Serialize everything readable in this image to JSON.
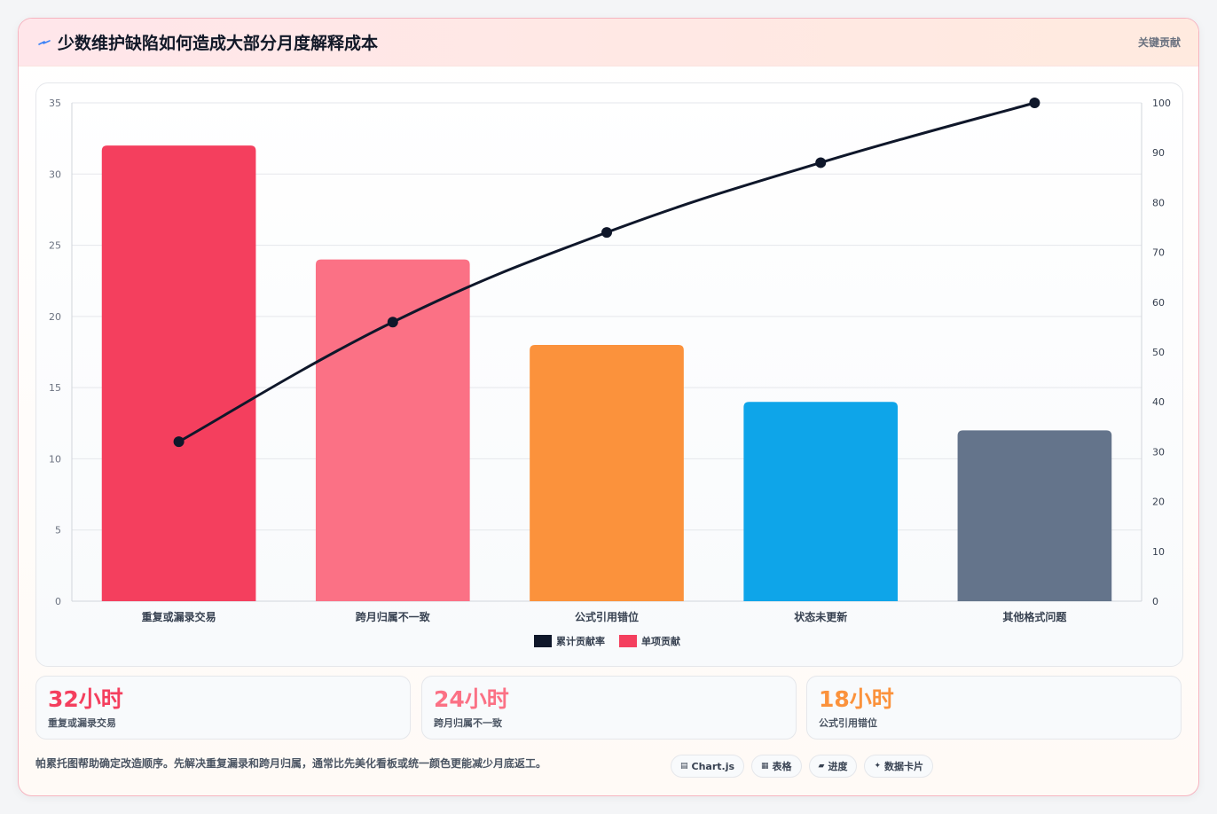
{
  "header": {
    "title": "少数维护缺陷如何造成大部分月度解释成本",
    "tag": "关键贡献"
  },
  "chart_data": {
    "type": "bar",
    "categories": [
      "重复或漏录交易",
      "跨月归属不一致",
      "公式引用错位",
      "状态未更新",
      "其他格式问题"
    ],
    "series": [
      {
        "name": "单项贡献",
        "type": "bar",
        "values": [
          32,
          24,
          18,
          14,
          12
        ],
        "colors": [
          "#f43f5e",
          "#fb7185",
          "#fb923c",
          "#0ea5e9",
          "#64748b"
        ],
        "axis": "left"
      },
      {
        "name": "累计贡献率",
        "type": "line",
        "values": [
          32,
          56,
          74,
          88,
          100
        ],
        "color": "#0f172a",
        "axis": "right"
      }
    ],
    "ylim": [
      0,
      35
    ],
    "yticks": [
      0,
      5,
      10,
      15,
      20,
      25,
      30,
      35
    ],
    "y2lim": [
      0,
      100
    ],
    "y2ticks": [
      0,
      10,
      20,
      30,
      40,
      50,
      60,
      70,
      80,
      90,
      100
    ],
    "grid": true,
    "legend": "bottom"
  },
  "stats": [
    {
      "value": "32小时",
      "label": "重复或漏录交易",
      "color": "#f43f5e"
    },
    {
      "value": "24小时",
      "label": "跨月归属不一致",
      "color": "#fb7185"
    },
    {
      "value": "18小时",
      "label": "公式引用错位",
      "color": "#fb923c"
    }
  ],
  "footer": {
    "note": "帕累托图帮助确定改造顺序。先解决重复漏录和跨月归属，通常比先美化看板或统一颜色更能减少月底返工。",
    "chips": [
      {
        "icon": "▤",
        "label": "Chart.js",
        "icon_name": "chart-icon"
      },
      {
        "icon": "▦",
        "label": "表格",
        "icon_name": "table-icon"
      },
      {
        "icon": "▰",
        "label": "进度",
        "icon_name": "progress-icon"
      },
      {
        "icon": "✦",
        "label": "数据卡片",
        "icon_name": "card-icon"
      }
    ]
  }
}
